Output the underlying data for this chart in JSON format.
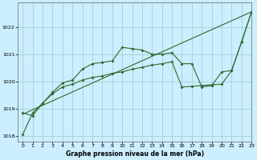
{
  "title": "Graphe pression niveau de la mer (hPa)",
  "bg_color": "#cceeff",
  "grid_color": "#99cccc",
  "line_color": "#2d6a2d",
  "xlim": [
    -0.5,
    23
  ],
  "ylim": [
    1017.8,
    1022.9
  ],
  "yticks": [
    1018,
    1019,
    1020,
    1021,
    1022
  ],
  "xticks": [
    0,
    1,
    2,
    3,
    4,
    5,
    6,
    7,
    8,
    9,
    10,
    11,
    12,
    13,
    14,
    15,
    16,
    17,
    18,
    19,
    20,
    21,
    22,
    23
  ],
  "line_straight": {
    "x": [
      0,
      23
    ],
    "y": [
      1018.8,
      1022.55
    ]
  },
  "line_main": {
    "x": [
      0,
      1,
      2,
      3,
      4,
      5,
      6,
      7,
      8,
      9,
      10,
      11,
      12,
      13,
      14,
      15,
      16,
      17,
      18,
      19,
      20,
      21,
      22,
      23
    ],
    "y": [
      1018.85,
      1018.75,
      1019.2,
      1019.6,
      1019.95,
      1020.05,
      1020.45,
      1020.65,
      1020.7,
      1020.75,
      1021.25,
      1021.2,
      1021.15,
      1021.0,
      1021.0,
      1021.05,
      1020.65,
      1020.65,
      1019.8,
      1019.85,
      1020.35,
      1020.4,
      1021.45,
      1022.55
    ]
  },
  "line_lower": {
    "x": [
      0,
      1,
      2,
      3,
      4,
      5,
      6,
      7,
      8,
      9,
      10,
      11,
      12,
      13,
      14,
      15,
      16,
      17,
      18,
      19,
      20,
      21,
      22,
      23
    ],
    "y": [
      1018.05,
      1018.85,
      1019.2,
      1019.55,
      1019.8,
      1019.9,
      1020.05,
      1020.15,
      1020.2,
      1020.3,
      1020.35,
      1020.45,
      1020.52,
      1020.6,
      1020.65,
      1020.72,
      1019.8,
      1019.82,
      1019.85,
      1019.88,
      1019.9,
      1020.4,
      1021.45,
      1022.55
    ]
  }
}
